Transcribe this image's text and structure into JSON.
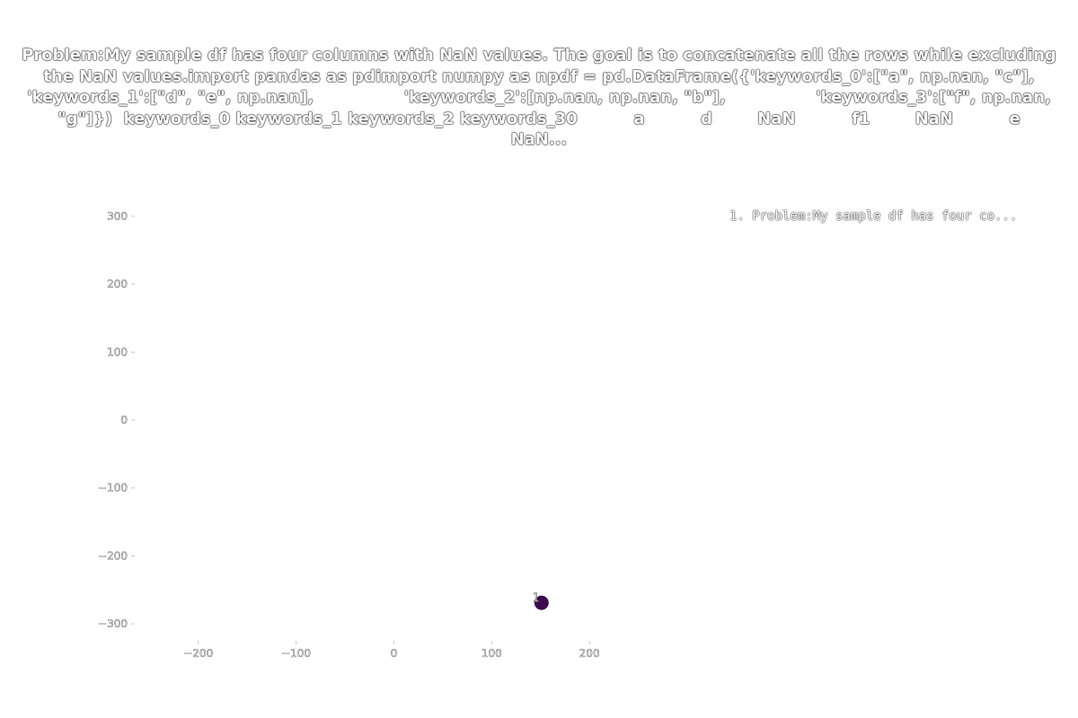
{
  "chart_data": {
    "type": "scatter",
    "title": "Problem:My sample df has four columns with NaN values. The goal is to concatenate all the rows while excluding the NaN values.import pandas as pdimport numpy as npdf = pd.DataFrame({'keywords_0':[\"a\", np.nan, \"c\"],                 'keywords_1':[\"d\", \"e\", np.nan],                'keywords_2':[np.nan, np.nan, \"b\"],                'keywords_3':[\"f\", np.nan, \"g\"]})  keywords_0 keywords_1 keywords_2 keywords_30          a          d        NaN          f1        NaN          e        NaN...",
    "xlabel": "",
    "ylabel": "",
    "xlim": [
      -265,
      255
    ],
    "ylim": [
      -325,
      325
    ],
    "xticks": [
      "−200",
      "−100",
      "0",
      "100",
      "200"
    ],
    "xtick_values": [
      -200,
      -100,
      0,
      100,
      200
    ],
    "yticks": [
      "300",
      "200",
      "100",
      "0",
      "−100",
      "−200",
      "−300"
    ],
    "ytick_values": [
      300,
      200,
      100,
      0,
      -100,
      -200,
      -300
    ],
    "grid": false,
    "legend_placement": "top-right",
    "legend": [
      "1. Problem:My sample df has four co..."
    ],
    "points": [
      {
        "x": 151,
        "y": -269,
        "label": "1",
        "color": "#3d0a4f"
      }
    ]
  }
}
